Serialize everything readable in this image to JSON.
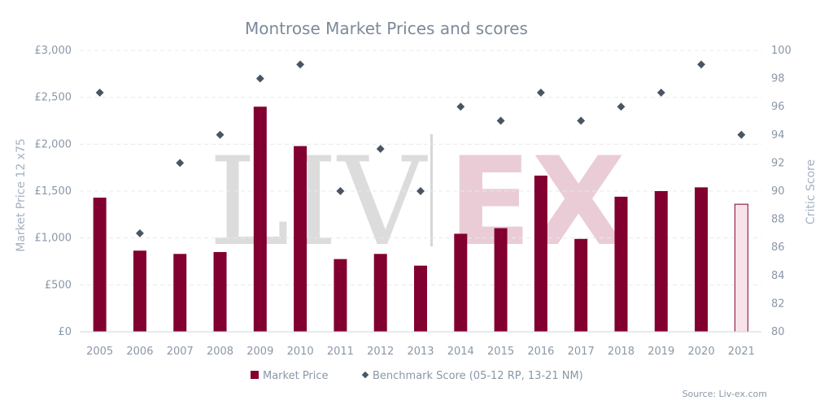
{
  "watermark": {
    "left": "LIV",
    "right": "EX"
  },
  "source": "Source: Liv-ex.com",
  "chart_data": {
    "type": "bar",
    "title": "Montrose Market Prices and scores",
    "xlabel": "",
    "ylabel": "Market Price 12 x75",
    "y2label": "Critic Score",
    "categories": [
      "2005",
      "2006",
      "2007",
      "2008",
      "2009",
      "2010",
      "2011",
      "2012",
      "2013",
      "2014",
      "2015",
      "2016",
      "2017",
      "2018",
      "2019",
      "2020",
      "2021"
    ],
    "ylim": [
      0,
      3000
    ],
    "yticks": [
      "£0",
      "£500",
      "£1,000",
      "£1,500",
      "£2,000",
      "£2,500",
      "£3,000"
    ],
    "y2lim": [
      80,
      100
    ],
    "y2ticks": [
      "80",
      "82",
      "84",
      "86",
      "88",
      "90",
      "92",
      "94",
      "96",
      "98",
      "100"
    ],
    "grid": true,
    "legend_position": "bottom",
    "colors": {
      "bar": "#820030",
      "bar_highlight_fill": "#f7e3e9",
      "point": "#4a5563"
    },
    "series": [
      {
        "name": "Market Price",
        "type": "bar",
        "axis": "left",
        "values": [
          1430,
          865,
          830,
          850,
          2400,
          1980,
          775,
          830,
          705,
          1045,
          1105,
          1665,
          990,
          1440,
          1500,
          1540,
          1360
        ]
      },
      {
        "name": "Benchmark Score (05-12 RP, 13-21 NM)",
        "type": "scatter",
        "axis": "right",
        "values": [
          97,
          87,
          92,
          94,
          98,
          99,
          90,
          93,
          90,
          96,
          95,
          97,
          95,
          96,
          97,
          99,
          94
        ]
      }
    ]
  }
}
